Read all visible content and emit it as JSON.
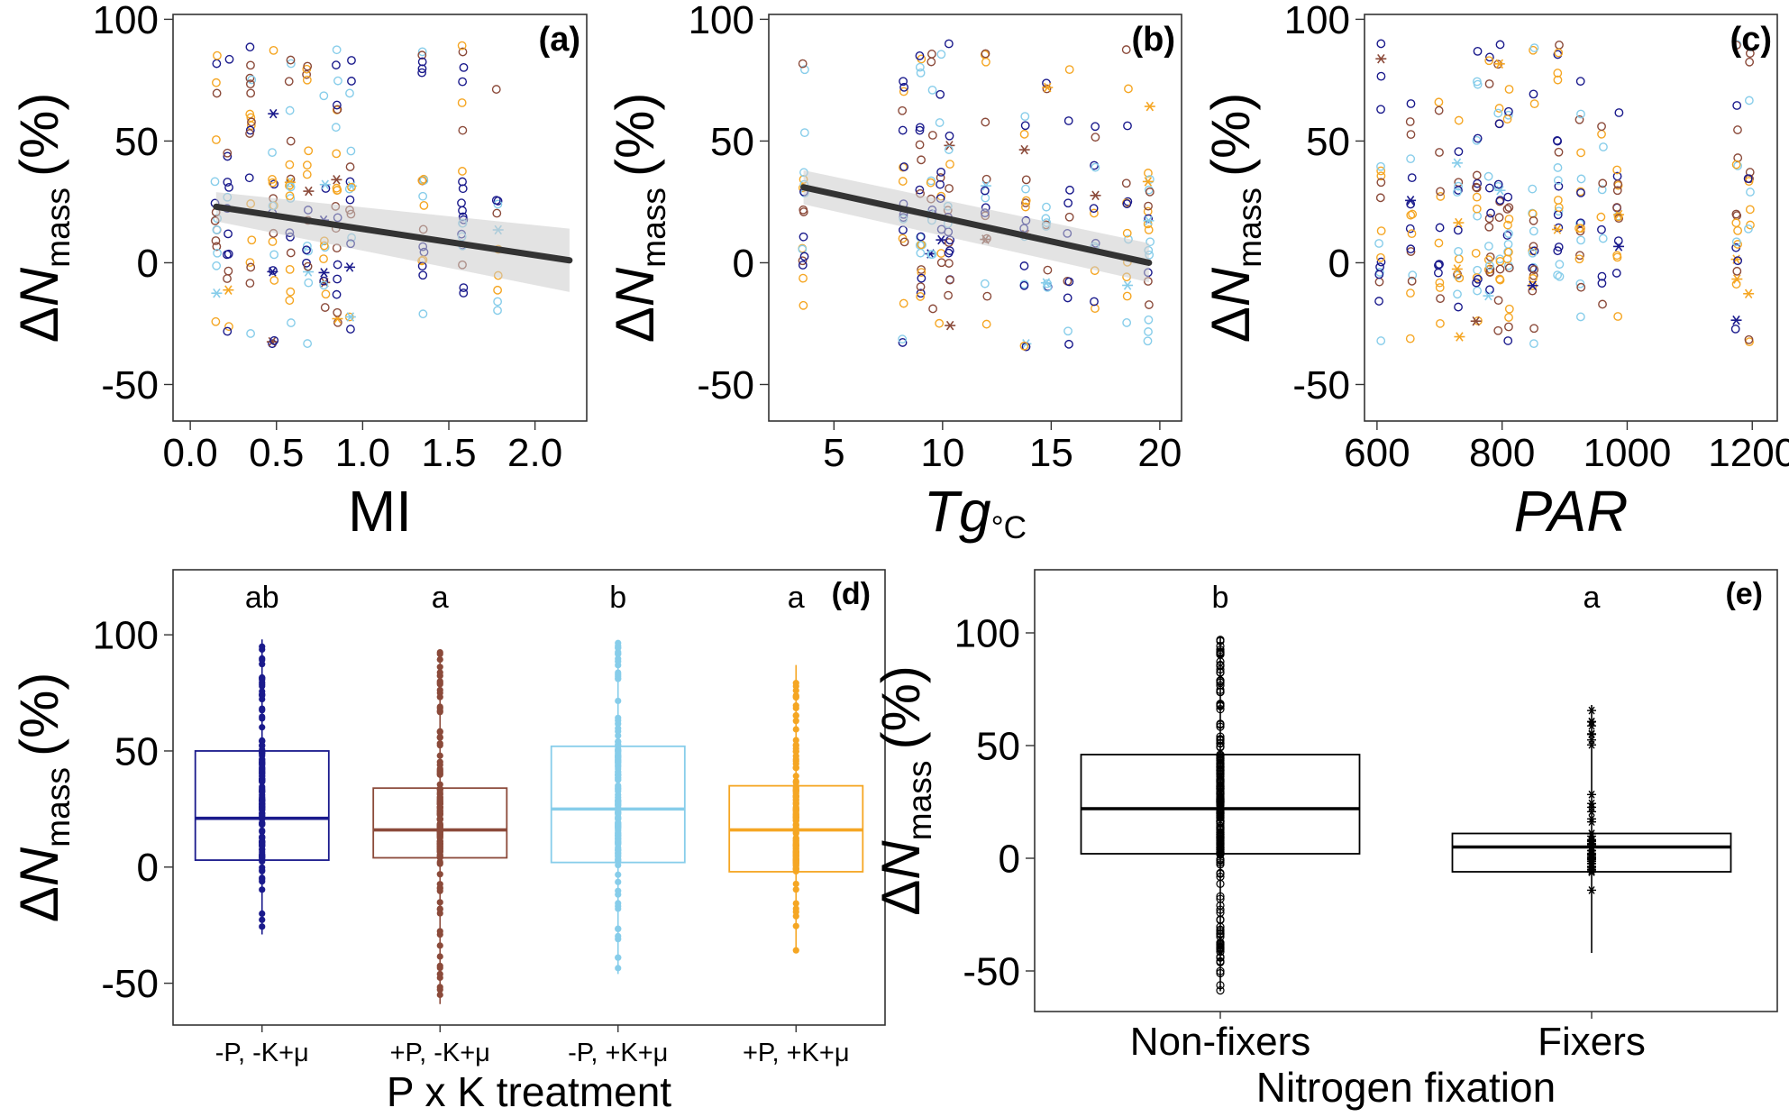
{
  "figure": {
    "colors": {
      "neg_p_neg_k": "#1a1a8c",
      "pos_p_neg_k": "#8b4a3a",
      "neg_p_pos_k": "#87cdea",
      "pos_p_pos_k": "#f5a623",
      "fit_line": "#333333",
      "ci_band": "#cccccc",
      "neutral": "#000000"
    }
  },
  "chart_data": [
    {
      "panel": "(a)",
      "type": "scatter",
      "xlabel": "MI",
      "ylabel_delta": "Δ",
      "ylabel_n": "N",
      "ylabel_sub": "mass",
      "ylabel_unit": "(%)",
      "xlim": [
        -0.1,
        2.3
      ],
      "ylim": [
        -65,
        102
      ],
      "xticks": [
        0.0,
        0.5,
        1.0,
        1.5,
        2.0
      ],
      "xtick_labels": [
        "0.0",
        "0.5",
        "1.0",
        "1.5",
        "2.0"
      ],
      "yticks": [
        -50,
        0,
        50,
        100
      ],
      "ytick_labels": [
        "-50",
        "0",
        "50",
        "100"
      ],
      "x_groups": [
        0.15,
        0.22,
        0.35,
        0.48,
        0.58,
        0.68,
        0.78,
        0.85,
        0.93,
        1.35,
        1.58,
        1.78
      ],
      "fit": {
        "x": [
          0.15,
          2.2
        ],
        "y": [
          23,
          1
        ],
        "ci_lower": [
          17,
          -12
        ],
        "ci_upper": [
          29,
          14
        ]
      }
    },
    {
      "panel": "(b)",
      "type": "scatter",
      "xlabel": "Tg",
      "xlabel_unit": "°C",
      "ylabel_delta": "Δ",
      "ylabel_n": "N",
      "ylabel_sub": "mass",
      "ylabel_unit": "(%)",
      "xlim": [
        2.0,
        21.0
      ],
      "ylim": [
        -65,
        102
      ],
      "xticks": [
        5,
        10,
        15,
        20
      ],
      "xtick_labels": [
        "5",
        "10",
        "15",
        "20"
      ],
      "yticks": [
        -50,
        0,
        50,
        100
      ],
      "ytick_labels": [
        "-50",
        "0",
        "50",
        "100"
      ],
      "x_groups": [
        3.6,
        8.2,
        9.0,
        9.5,
        9.9,
        10.3,
        12.0,
        13.8,
        14.8,
        15.8,
        17.0,
        18.5,
        19.5
      ],
      "fit": {
        "x": [
          3.6,
          19.5
        ],
        "y": [
          31,
          0
        ],
        "ci_lower": [
          24,
          -8
        ],
        "ci_upper": [
          38,
          8
        ]
      }
    },
    {
      "panel": "(c)",
      "type": "scatter",
      "xlabel": "PAR",
      "ylabel_delta": "Δ",
      "ylabel_n": "N",
      "ylabel_sub": "mass",
      "ylabel_unit": "(%)",
      "xlim": [
        580,
        1240
      ],
      "ylim": [
        -65,
        102
      ],
      "xticks": [
        600,
        800,
        1000,
        1200
      ],
      "xtick_labels": [
        "600",
        "800",
        "1000",
        "1200"
      ],
      "yticks": [
        -50,
        0,
        50,
        100
      ],
      "ytick_labels": [
        "-50",
        "0",
        "50",
        "100"
      ],
      "x_groups": [
        605,
        655,
        700,
        730,
        760,
        780,
        795,
        810,
        850,
        890,
        925,
        960,
        985,
        1175,
        1195
      ]
    },
    {
      "panel": "(d)",
      "type": "box",
      "xlabel": "P x K treatment",
      "ylabel_delta": "Δ",
      "ylabel_n": "N",
      "ylabel_sub": "mass",
      "ylabel_unit": "(%)",
      "ylim": [
        -68,
        128
      ],
      "yticks": [
        -50,
        0,
        50,
        100
      ],
      "ytick_labels": [
        "-50",
        "0",
        "50",
        "100"
      ],
      "categories": [
        "-P, -K+μ",
        "+P, -K+μ",
        "-P, +K+μ",
        "+P, +K+μ"
      ],
      "letters": [
        "ab",
        "a",
        "b",
        "a"
      ],
      "boxes": [
        {
          "q1": 3,
          "median": 21,
          "q3": 50,
          "min": -29,
          "max": 98,
          "color_key": "neg_p_neg_k"
        },
        {
          "q1": 4,
          "median": 16,
          "q3": 34,
          "min": -59,
          "max": 93,
          "color_key": "pos_p_neg_k"
        },
        {
          "q1": 2,
          "median": 25,
          "q3": 52,
          "min": -46,
          "max": 97,
          "color_key": "neg_p_pos_k"
        },
        {
          "q1": -2,
          "median": 16,
          "q3": 35,
          "min": -36,
          "max": 87,
          "color_key": "pos_p_pos_k"
        }
      ]
    },
    {
      "panel": "(e)",
      "type": "box",
      "xlabel": "Nitrogen fixation",
      "ylabel_delta": "Δ",
      "ylabel_n": "N",
      "ylabel_sub": "mass",
      "ylabel_unit": "(%)",
      "ylim": [
        -68,
        128
      ],
      "yticks": [
        -50,
        0,
        50,
        100
      ],
      "ytick_labels": [
        "-50",
        "0",
        "50",
        "100"
      ],
      "categories": [
        "Non-fixers",
        "Fixers"
      ],
      "letters": [
        "b",
        "a"
      ],
      "boxes": [
        {
          "q1": 2,
          "median": 22,
          "q3": 46,
          "min": -59,
          "max": 98
        },
        {
          "q1": -6,
          "median": 5,
          "q3": 11,
          "min": -42,
          "max": 68
        }
      ]
    }
  ]
}
